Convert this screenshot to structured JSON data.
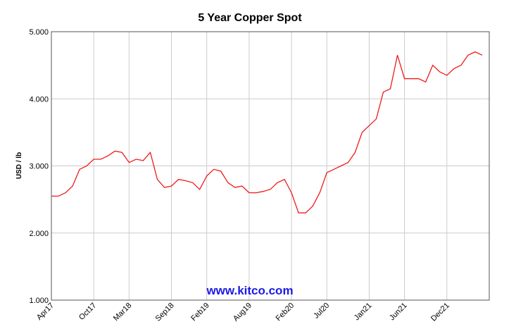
{
  "chart_data": {
    "type": "line",
    "title": "5 Year Copper Spot",
    "y_label": "USD / lb",
    "watermark": "www.kitco.com",
    "categories": [
      "Apr17",
      null,
      null,
      null,
      null,
      null,
      "Oct17",
      null,
      null,
      null,
      null,
      "Mar18",
      null,
      null,
      null,
      null,
      null,
      "Sep18",
      null,
      null,
      null,
      null,
      "Feb19",
      null,
      null,
      null,
      null,
      null,
      "Aug19",
      null,
      null,
      null,
      null,
      null,
      "Feb20",
      null,
      null,
      null,
      null,
      "Jul20",
      null,
      null,
      null,
      null,
      null,
      "Jan21",
      null,
      null,
      null,
      null,
      "Jun21",
      null,
      null,
      null,
      null,
      null,
      "Dec21",
      null,
      null,
      null,
      null,
      null
    ],
    "series": [
      {
        "name": "Copper",
        "color": "#ee1c1c",
        "values": [
          2.55,
          2.55,
          2.6,
          2.7,
          2.95,
          3.0,
          3.1,
          3.1,
          3.15,
          3.22,
          3.2,
          3.05,
          3.1,
          3.08,
          3.2,
          2.8,
          2.68,
          2.7,
          2.8,
          2.78,
          2.75,
          2.65,
          2.85,
          2.95,
          2.92,
          2.75,
          2.68,
          2.7,
          2.6,
          2.6,
          2.62,
          2.65,
          2.75,
          2.8,
          2.6,
          2.3,
          2.3,
          2.4,
          2.6,
          2.9,
          2.95,
          3.0,
          3.05,
          3.2,
          3.5,
          3.6,
          3.7,
          4.1,
          4.15,
          4.65,
          4.3,
          4.3,
          4.3,
          4.25,
          4.5,
          4.4,
          4.35,
          4.45,
          4.5,
          4.65,
          4.7,
          4.65
        ]
      }
    ],
    "ylim": [
      1,
      5
    ],
    "yticks": [
      {
        "value": 1,
        "label": "1.000"
      },
      {
        "value": 2,
        "label": "2.000"
      },
      {
        "value": 3,
        "label": "3.000"
      },
      {
        "value": 4,
        "label": "4.000"
      },
      {
        "value": 5,
        "label": "5.000"
      }
    ],
    "grid": true
  }
}
